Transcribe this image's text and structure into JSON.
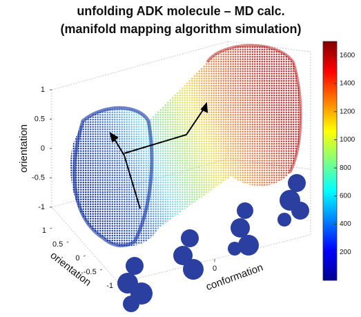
{
  "chart_data": {
    "type": "scatter3d",
    "title": [
      "unfolding ADK molecule – MD calc.",
      "(manifold mapping algorithm simulation)"
    ],
    "zlabel": "orientation",
    "ylabel": "orientation",
    "xlabel": "conformation",
    "zlim": [
      -1,
      1
    ],
    "zticks": [
      -1,
      -0.5,
      0,
      0.5,
      1
    ],
    "ylim": [
      -1,
      1
    ],
    "yticks": [
      -1,
      -0.5,
      0,
      0.5,
      1
    ],
    "xlim": [
      -1,
      1
    ],
    "xticks": [
      0
    ],
    "colorbar": {
      "colormap": "jet",
      "clim": [
        0,
        1700
      ],
      "ticks": [
        200,
        400,
        600,
        800,
        1000,
        1200,
        1400,
        1600
      ]
    }
  }
}
